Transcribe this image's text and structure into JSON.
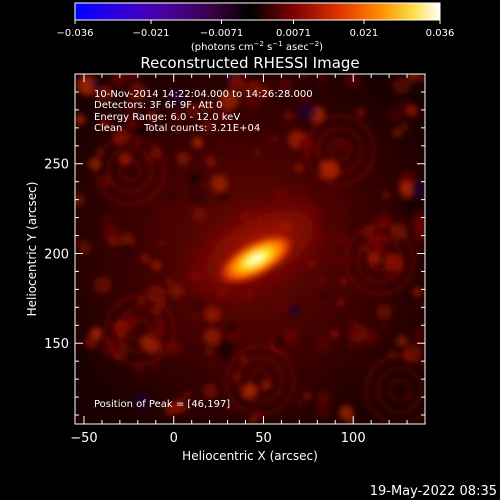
{
  "colorbar": {
    "ticks": [
      "−0.036",
      "−0.021",
      "−0.0071",
      "0.0071",
      "0.021",
      "0.036"
    ],
    "min": -0.036,
    "max": 0.036,
    "units_prefix": "(photons cm",
    "units_exp1": "−2",
    "units_mid": " s",
    "units_exp2": "−1",
    "units_suffix": " asec",
    "units_exp3": "−2",
    "units_close": ")"
  },
  "annotation": {
    "line1": "10-Nov-2014 14:22:04.000 to 14:26:28.000",
    "line2": "Detectors: 3F 6F 9F, Att 0",
    "line3": "Energy Range: 6.0 - 12.0 keV",
    "line4_a": "Clean",
    "line4_b": "Total counts: 3.21E+04",
    "peak": "Position of Peak = [46,197]"
  },
  "timestamp": "19-May-2022 08:35",
  "chart_data": {
    "type": "heatmap",
    "title": "Reconstructed RHESSI Image",
    "xlabel": "Heliocentric X (arcsec)",
    "ylabel": "Heliocentric Y (arcsec)",
    "xlim": [
      -55,
      140
    ],
    "ylim": [
      105,
      300
    ],
    "x_ticks": [
      -50,
      0,
      50,
      100
    ],
    "y_ticks": [
      150,
      200,
      250
    ],
    "x_tick_labels": [
      "−50",
      "0",
      "50",
      "100"
    ],
    "y_tick_labels": [
      "150",
      "200",
      "250"
    ],
    "peak": {
      "x": 46,
      "y": 197
    },
    "colormap": [
      "#0000ff",
      "#3a00c8",
      "#4a0078",
      "#1a0018",
      "#000000",
      "#5a0000",
      "#c02800",
      "#ff8800",
      "#ffe040",
      "#ffffff"
    ],
    "grid": false
  }
}
